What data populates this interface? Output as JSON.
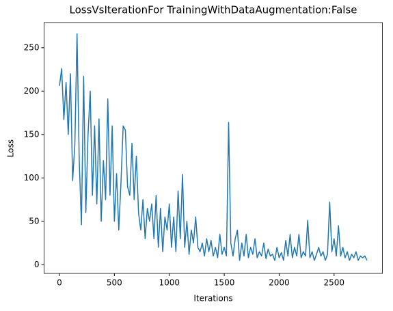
{
  "chart_data": {
    "type": "line",
    "title": "LossVsIterationFor TrainingWithDataAugmentation:False",
    "xlabel": "Iterations",
    "ylabel": "Loss",
    "x": [
      0,
      20,
      40,
      60,
      80,
      100,
      120,
      140,
      160,
      180,
      200,
      220,
      240,
      260,
      280,
      300,
      320,
      340,
      360,
      380,
      400,
      420,
      440,
      460,
      480,
      500,
      520,
      540,
      560,
      580,
      600,
      620,
      640,
      660,
      680,
      700,
      720,
      740,
      760,
      780,
      800,
      820,
      840,
      860,
      880,
      900,
      920,
      940,
      960,
      980,
      1000,
      1020,
      1040,
      1060,
      1080,
      1100,
      1120,
      1140,
      1160,
      1180,
      1200,
      1220,
      1240,
      1260,
      1280,
      1300,
      1320,
      1340,
      1360,
      1380,
      1400,
      1420,
      1440,
      1460,
      1480,
      1500,
      1520,
      1540,
      1560,
      1580,
      1600,
      1620,
      1640,
      1660,
      1680,
      1700,
      1720,
      1740,
      1760,
      1780,
      1800,
      1820,
      1840,
      1860,
      1880,
      1900,
      1920,
      1940,
      1960,
      1980,
      2000,
      2020,
      2040,
      2060,
      2080,
      2100,
      2120,
      2140,
      2160,
      2180,
      2200,
      2220,
      2240,
      2260,
      2280,
      2300,
      2320,
      2340,
      2360,
      2380,
      2400,
      2420,
      2440,
      2460,
      2480,
      2500,
      2520,
      2540,
      2560,
      2580,
      2600,
      2620,
      2640,
      2660,
      2680,
      2700,
      2720,
      2740,
      2760,
      2780,
      2800
    ],
    "series": [
      {
        "name": "Loss",
        "color": "#1f77b4",
        "values": [
          206,
          226,
          167,
          210,
          150,
          220,
          97,
          138,
          266,
          120,
          46,
          217,
          60,
          150,
          200,
          80,
          160,
          70,
          168,
          50,
          120,
          75,
          191,
          80,
          160,
          50,
          105,
          40,
          95,
          160,
          155,
          90,
          80,
          140,
          75,
          125,
          60,
          40,
          75,
          30,
          65,
          50,
          70,
          30,
          80,
          20,
          65,
          15,
          55,
          40,
          70,
          20,
          55,
          15,
          85,
          30,
          104,
          20,
          50,
          12,
          40,
          25,
          55,
          20,
          15,
          25,
          10,
          30,
          15,
          28,
          10,
          20,
          8,
          35,
          12,
          20,
          10,
          164,
          25,
          10,
          30,
          40,
          5,
          25,
          10,
          35,
          8,
          20,
          12,
          30,
          8,
          15,
          10,
          25,
          7,
          18,
          10,
          12,
          5,
          20,
          8,
          14,
          5,
          28,
          10,
          35,
          8,
          20,
          10,
          35,
          8,
          15,
          10,
          51,
          8,
          15,
          5,
          12,
          20,
          10,
          15,
          5,
          12,
          72,
          15,
          30,
          10,
          45,
          10,
          20,
          8,
          15,
          5,
          12,
          8,
          15,
          5,
          10,
          8,
          10,
          5
        ]
      }
    ],
    "xlim": [
      -140,
      2940
    ],
    "ylim": [
      -10,
      279
    ],
    "xticks": [
      0,
      500,
      1000,
      1500,
      2000,
      2500
    ],
    "yticks": [
      0,
      50,
      100,
      150,
      200,
      250
    ]
  }
}
